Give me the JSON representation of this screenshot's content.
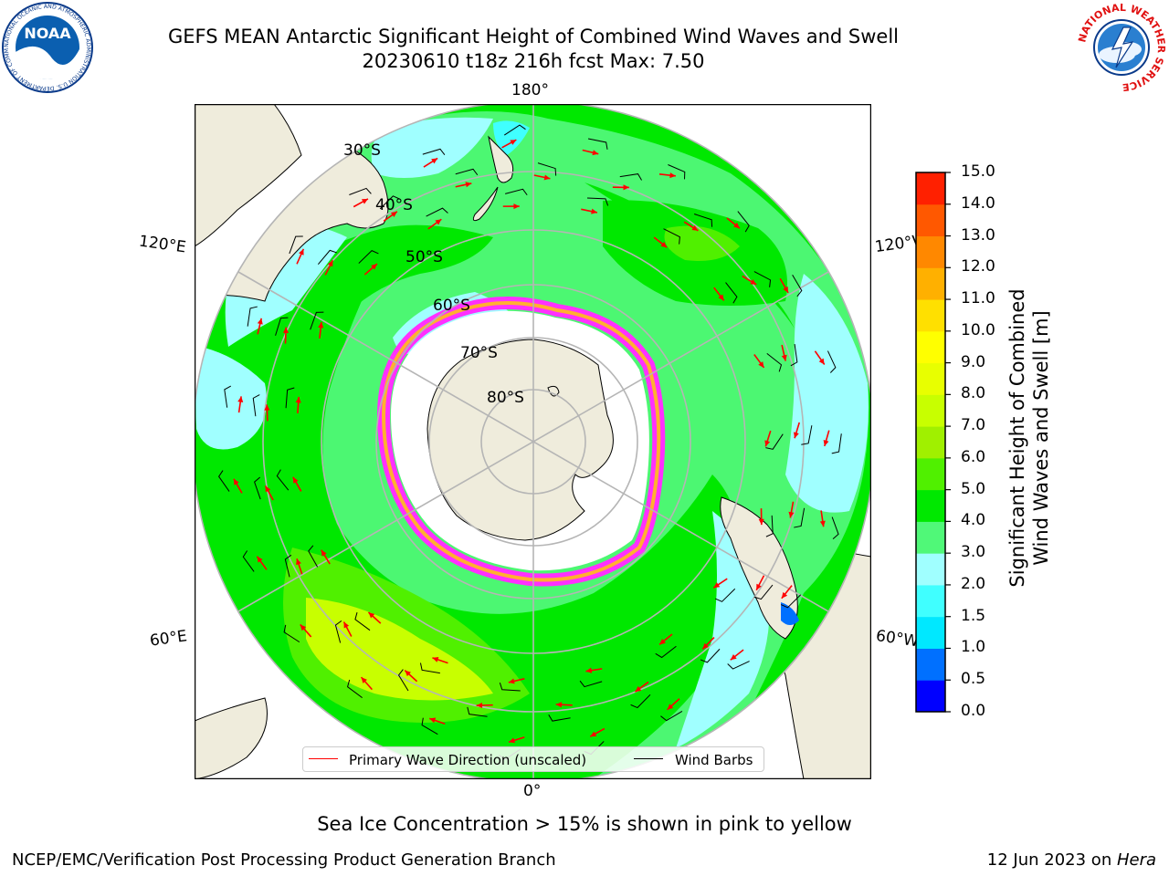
{
  "header": {
    "title_line1": "GEFS MEAN Antarctic Significant Height of Combined Wind Waves and Swell",
    "title_line2": "20230610 t18z 216h fcst   Max: 7.50"
  },
  "logos": {
    "noaa": {
      "text": "NOAA",
      "ring_text": "NATIONAL OCEANIC AND ATMOSPHERIC ADMINISTRATION U.S. DEPARTMENT OF COMMERCE"
    },
    "nws": {
      "ring_text": "NATIONAL WEATHER SERVICE"
    }
  },
  "map": {
    "projection": "south-polar-stereographic",
    "longitude_labels": {
      "top": "180°",
      "bottom": "0°",
      "upper_left": "120°E",
      "upper_right": "120°W",
      "lower_left": "60°E",
      "lower_right": "60°W"
    },
    "latitude_labels": [
      "30°S",
      "40°S",
      "50°S",
      "60°S",
      "70°S",
      "80°S"
    ],
    "legend": {
      "wave_direction": "Primary Wave Direction (unscaled)",
      "wind_barbs": "Wind Barbs"
    },
    "colors": {
      "land": "#efecdc",
      "ice": "#ffffff",
      "graticule": "#b5b5b5",
      "arrow": "#ff0000",
      "barb": "#000000",
      "ice_edge_pink": "#ff30ff",
      "ice_edge_orange": "#ffb030"
    }
  },
  "colorbar": {
    "label_line1": "Significant Height of Combined",
    "label_line2": "Wind Waves and Swell [m]",
    "ticks": [
      "0.0",
      "0.5",
      "1.0",
      "1.5",
      "2.0",
      "3.0",
      "4.0",
      "5.0",
      "6.0",
      "7.0",
      "8.0",
      "9.0",
      "10.0",
      "11.0",
      "12.0",
      "13.0",
      "14.0",
      "15.0"
    ],
    "colors": [
      "#0000ff",
      "#0070ff",
      "#00e8ff",
      "#40ffff",
      "#a0ffff",
      "#50f878",
      "#00e800",
      "#50f000",
      "#a0f000",
      "#c8ff00",
      "#e8ff00",
      "#ffff00",
      "#ffe000",
      "#ffb000",
      "#ff8800",
      "#ff5800",
      "#ff2000"
    ]
  },
  "chart_data": {
    "type": "heatmap",
    "variable": "Significant Height of Combined Wind Waves and Swell",
    "units": "m",
    "max": 7.5,
    "scale_range": [
      0.0,
      15.0
    ],
    "note": "Sea Ice Concentration > 15% is shown in pink to yellow"
  },
  "footer": {
    "note": "Sea Ice Concentration > 15% is shown in pink to yellow",
    "credit": "NCEP/EMC/Verification Post Processing Product Generation Branch",
    "date": "12 Jun 2023 on ",
    "system": "Hera"
  }
}
